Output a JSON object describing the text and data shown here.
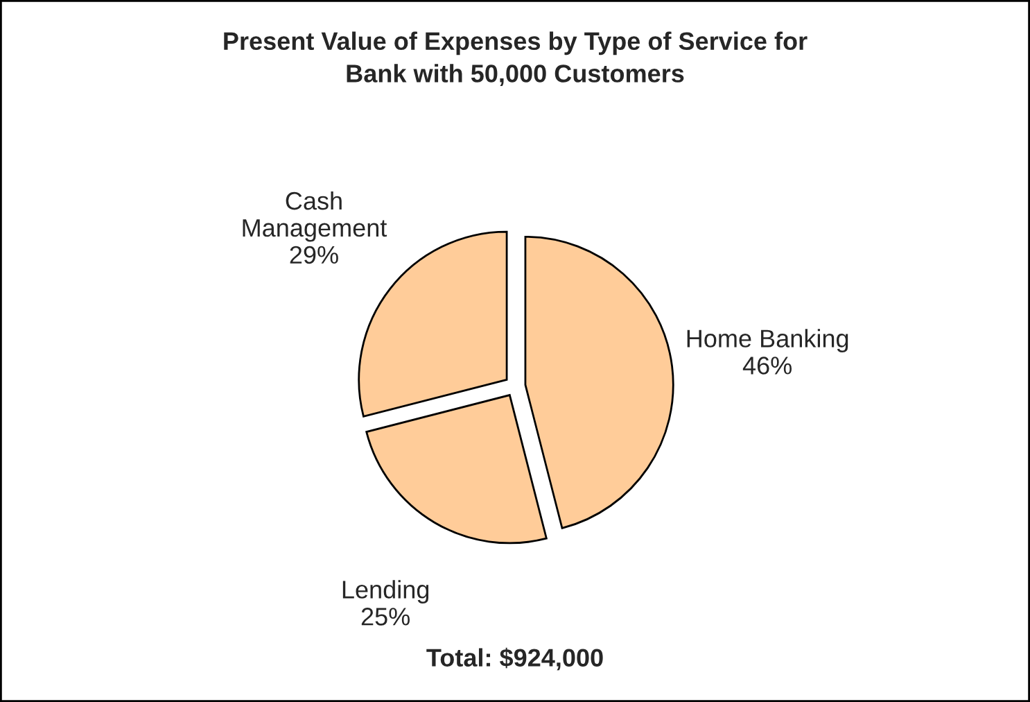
{
  "chart_data": {
    "type": "pie",
    "title": "Present Value of Expenses by Type of Service for\nBank with 50,000 Customers",
    "categories": [
      "Home Banking",
      "Lending",
      "Cash Management"
    ],
    "values": [
      46,
      25,
      29
    ],
    "colors": [
      "#ffcc99",
      "#ffcc99",
      "#ffcc99"
    ],
    "value_labels": [
      "46%",
      "25%",
      "29%"
    ],
    "legend": false,
    "annotations": [
      "Total: $924,000"
    ]
  }
}
